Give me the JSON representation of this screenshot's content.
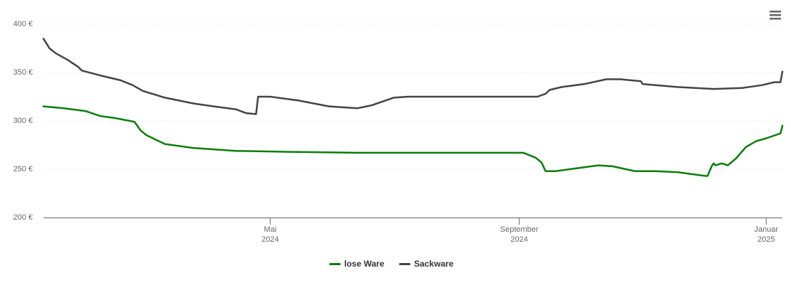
{
  "chart_data": {
    "type": "line",
    "xlim": [
      9,
      374
    ],
    "xticks": [
      {
        "value": 121,
        "label": "Mai\n2024"
      },
      {
        "value": 244,
        "label": "September\n2024"
      },
      {
        "value": 366,
        "label": "Januar\n2025"
      }
    ],
    "ylim": [
      200,
      400
    ],
    "yticks": [
      {
        "value": 200,
        "label": "200 €"
      },
      {
        "value": 250,
        "label": "250 €"
      },
      {
        "value": 300,
        "label": "300 €"
      },
      {
        "value": 350,
        "label": "350 €"
      },
      {
        "value": 400,
        "label": "400 €"
      }
    ],
    "grid": true,
    "legend": "bottom",
    "series": [
      {
        "name": "lose Ware",
        "color": "#0a7d0a",
        "x": [
          9,
          19,
          30,
          37,
          44,
          49,
          54,
          57,
          60,
          69,
          83,
          104,
          128,
          164,
          246,
          252,
          255,
          257,
          262,
          269,
          283,
          290,
          301,
          311,
          322,
          336,
          337,
          339,
          340,
          341,
          344,
          347,
          351,
          356,
          361,
          366,
          373,
          374
        ],
        "values": [
          315,
          313,
          310,
          305,
          303,
          301,
          299,
          290,
          285,
          276,
          272,
          269,
          268,
          267,
          267,
          262,
          257,
          248,
          248,
          250,
          254,
          253,
          248,
          248,
          247,
          243,
          243,
          253,
          256,
          254,
          256,
          254,
          261,
          273,
          279,
          282,
          287,
          295
        ]
      },
      {
        "name": "Sackware",
        "color": "#434348",
        "x": [
          9,
          12,
          15,
          21,
          26,
          28,
          37,
          47,
          53,
          58,
          69,
          83,
          93,
          104,
          109,
          114,
          115,
          121,
          135,
          150,
          164,
          171,
          182,
          189,
          235,
          253,
          257,
          259,
          265,
          276,
          287,
          294,
          304,
          305,
          322,
          340,
          354,
          364,
          370,
          373,
          374
        ],
        "values": [
          385,
          375,
          370,
          363,
          356,
          352,
          347,
          342,
          337,
          331,
          324,
          318,
          315,
          312,
          308,
          307,
          325,
          325,
          321,
          315,
          313,
          316,
          324,
          325,
          325,
          325,
          328,
          332,
          335,
          338,
          343,
          343,
          341,
          338,
          335,
          333,
          334,
          337,
          340,
          340,
          351
        ]
      }
    ]
  }
}
